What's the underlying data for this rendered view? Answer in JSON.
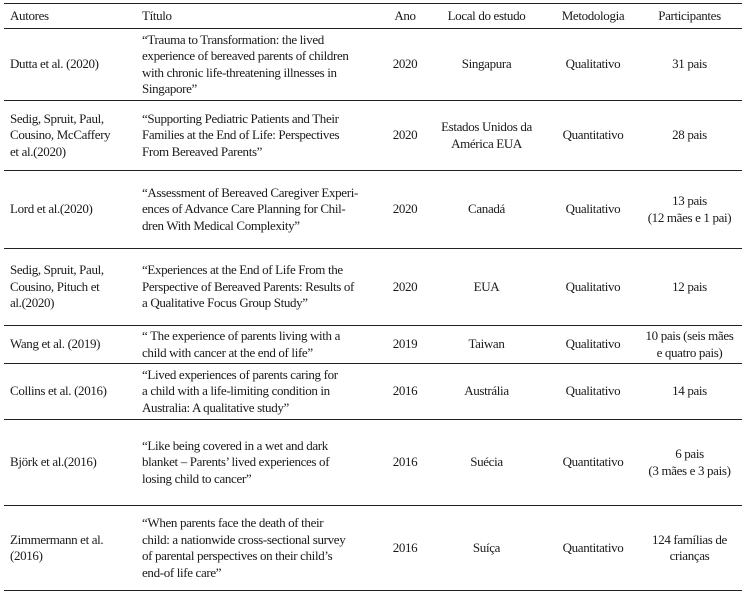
{
  "headers": [
    "Autores",
    "Título",
    "Ano",
    "Local do estudo",
    "Metodologia",
    "Participantes"
  ],
  "rows": [
    {
      "autores": "Dutta et al. (2020)",
      "titulo": "“Trauma to Transformation: the lived\nexperience of bereaved parents of children\nwith chronic life-threatening illnesses in\nSingapore”",
      "ano": "2020",
      "local": "Singapura",
      "metodologia": "Qualitativo",
      "participantes": "31 pais"
    },
    {
      "autores": "Sedig, Spruit, Paul,\nCousino, McCaffery\net al.(2020)",
      "titulo": "“Supporting Pediatric Patients and Their\nFamilies at the End of Life: Perspectives\nFrom Bereaved Parents”",
      "ano": "2020",
      "local": "Estados Unidos da\nAmérica EUA",
      "metodologia": "Quantitativo",
      "participantes": "28 pais"
    },
    {
      "autores": "Lord et al.(2020)",
      "titulo": "“Assessment of Bereaved Caregiver Experi-\nences of Advance Care Planning for Chil-\ndren With Medical Complexity”",
      "ano": "2020",
      "local": "Canadá",
      "metodologia": "Qualitativo",
      "participantes": "13 pais\n(12 mães e 1 pai)"
    },
    {
      "autores": "Sedig, Spruit, Paul,\nCousino, Pituch et\nal.(2020)",
      "titulo": "“Experiences at the End of Life From the\nPerspective of Bereaved Parents: Results of\na Qualitative Focus Group Study”",
      "ano": "2020",
      "local": "EUA",
      "metodologia": "Qualitativo",
      "participantes": "12 pais"
    },
    {
      "autores": "Wang et al. (2019)",
      "titulo": "“ The experience of parents living with a\nchild with cancer at the end of life”",
      "ano": "2019",
      "local": "Taiwan",
      "metodologia": "Qualitativo",
      "participantes": "10 pais (seis mães\ne quatro pais)"
    },
    {
      "autores": "Collins et al. (2016)",
      "titulo": "“Lived experiences of parents caring for\na child with a life-limiting condition in\nAustralia: A qualitative study”",
      "ano": "2016",
      "local": "Austrália",
      "metodologia": "Qualitativo",
      "participantes": "14 pais"
    },
    {
      "autores": "Björk et al.(2016)",
      "titulo": "“Like being covered in a wet and dark\nblanket – Parents’ lived experiences of\nlosing child to cancer”",
      "ano": "2016",
      "local": "Suécia",
      "metodologia": "Quantitativo",
      "participantes": "6 pais\n(3 mães e 3 pais)"
    },
    {
      "autores": "Zimmermann et al.\n(2016)",
      "titulo": "“When parents face the death of their\nchild: a nationwide cross-sectional survey\nof parental perspectives on their child’s\nend-of life care”",
      "ano": "2016",
      "local": "Suíça",
      "metodologia": "Quantitativo",
      "participantes": "124 famílias de\ncrianças"
    }
  ]
}
